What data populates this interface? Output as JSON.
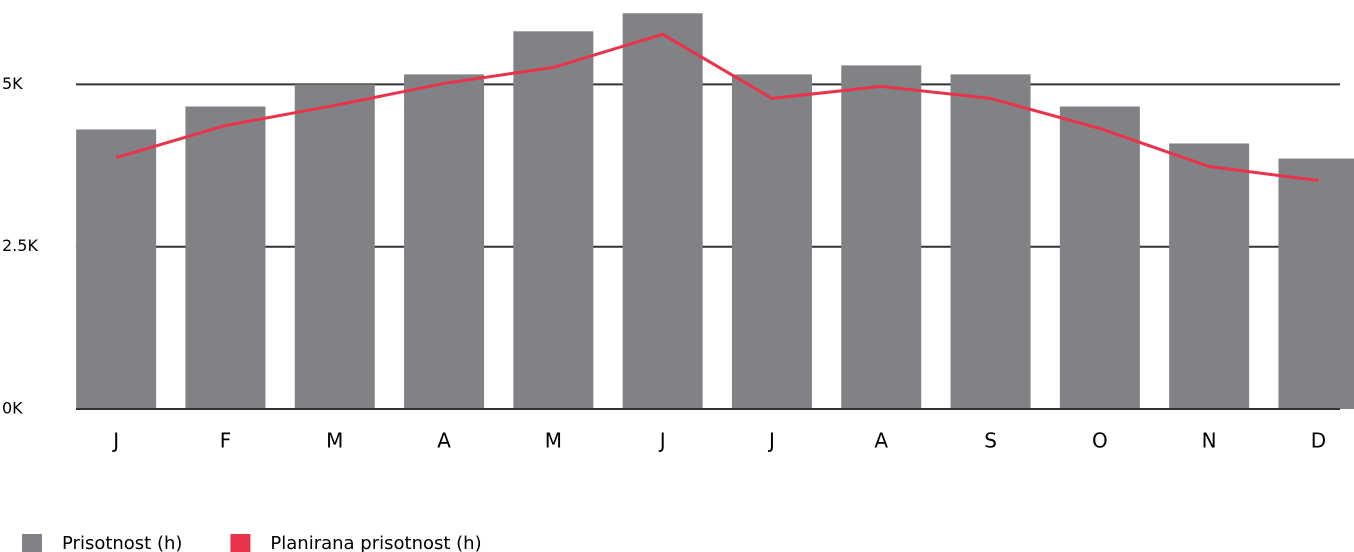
{
  "chart_data": {
    "type": "bar-line",
    "categories": [
      "J",
      "F",
      "M",
      "A",
      "M",
      "J",
      "J",
      "A",
      "S",
      "O",
      "N",
      "D"
    ],
    "series": [
      {
        "name": "Prisotnost (h)",
        "type": "bar",
        "color": "#808285",
        "values": [
          4306,
          4660,
          5000,
          5154,
          5818,
          6096,
          5154,
          5293,
          5154,
          4660,
          4090,
          3858
        ]
      },
      {
        "name": "Planirana prisotnost (h)",
        "type": "line",
        "color": "#e8334a",
        "values": [
          3873,
          4367,
          4676,
          5015,
          5262,
          5772,
          4784,
          4969,
          4784,
          4321,
          3735,
          3519
        ]
      }
    ],
    "ylim": [
      0,
      6300
    ],
    "yticks": [
      {
        "value": 0,
        "label": "0K"
      },
      {
        "value": 2500,
        "label": "2.5K"
      },
      {
        "value": 5000,
        "label": "5K"
      }
    ],
    "grid": true,
    "legend": "bottom-left"
  }
}
